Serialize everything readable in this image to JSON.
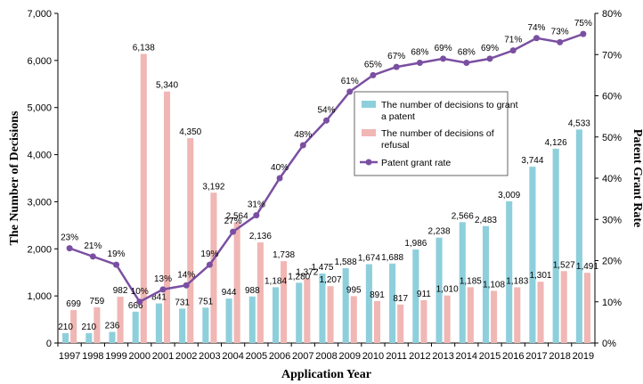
{
  "chart_data": {
    "type": "bar",
    "x": [
      "1997",
      "1998",
      "1999",
      "2000",
      "2001",
      "2002",
      "2003",
      "2004",
      "2005",
      "2006",
      "2007",
      "2008",
      "2009",
      "2010",
      "2011",
      "2012",
      "2013",
      "2014",
      "2015",
      "2016",
      "2017",
      "2018",
      "2019"
    ],
    "series": [
      {
        "name": "The number of decisions to grant a patent",
        "type": "bar",
        "axis": "left",
        "color": "#8ecfdc",
        "values": [
          210,
          210,
          236,
          666,
          841,
          731,
          751,
          944,
          988,
          1184,
          1280,
          1475,
          1588,
          1674,
          1688,
          1986,
          2238,
          2566,
          2483,
          3009,
          3744,
          4126,
          4533
        ],
        "labels": [
          "210",
          "210",
          "236",
          "666",
          "841",
          "731",
          "751",
          "944",
          "988",
          "1,184",
          "1,280",
          "1,475",
          "1,588",
          "1,674",
          "1,688",
          "1,986",
          "2,238",
          "2,566",
          "2,483",
          "3,009",
          "3,744",
          "4,126",
          "4,533"
        ]
      },
      {
        "name": "The number of decisions of refusal",
        "type": "bar",
        "axis": "left",
        "color": "#f0b7b4",
        "values": [
          699,
          759,
          982,
          6138,
          5340,
          4350,
          3192,
          2564,
          2136,
          1738,
          1372,
          1207,
          995,
          891,
          817,
          911,
          1010,
          1185,
          1108,
          1183,
          1301,
          1527,
          1491
        ],
        "labels": [
          "699",
          "759",
          "982",
          "6,138",
          "5,340",
          "4,350",
          "3,192",
          "2,564",
          "2,136",
          "1,738",
          "1,372",
          "1,207",
          "995",
          "891",
          "817",
          "911",
          "1,010",
          "1,185",
          "1,108",
          "1,183",
          "1,301",
          "1,527",
          "1,491"
        ]
      },
      {
        "name": "Patent grant rate",
        "type": "line",
        "axis": "right",
        "color": "#7a4fa1",
        "values": [
          23,
          21,
          19,
          10,
          13,
          14,
          19,
          27,
          31,
          40,
          48,
          54,
          61,
          65,
          67,
          68,
          69,
          68,
          69,
          71,
          74,
          73,
          75
        ],
        "labels": [
          "23%",
          "21%",
          "19%",
          "10%",
          "13%",
          "14%",
          "19%",
          "27%",
          "31%",
          "40%",
          "48%",
          "54%",
          "61%",
          "65%",
          "67%",
          "68%",
          "69%",
          "68%",
          "69%",
          "71%",
          "74%",
          "73%",
          "75%"
        ]
      }
    ],
    "xlabel": "Application Year",
    "ylabel": "The Number of Decisions",
    "y2label": "Patent Grant Rate",
    "ylim": [
      0,
      7000
    ],
    "y2lim": [
      0,
      80
    ],
    "yticks": [
      "0",
      "1,000",
      "2,000",
      "3,000",
      "4,000",
      "5,000",
      "6,000",
      "7,000"
    ],
    "y2ticks": [
      "0%",
      "10%",
      "20%",
      "30%",
      "40%",
      "50%",
      "60%",
      "70%",
      "80%"
    ],
    "legend": {
      "position": "center-right",
      "entries": [
        "The number of decisions to grant a patent",
        "The number of decisions of refusal",
        "Patent grant rate"
      ]
    },
    "grid": false
  }
}
